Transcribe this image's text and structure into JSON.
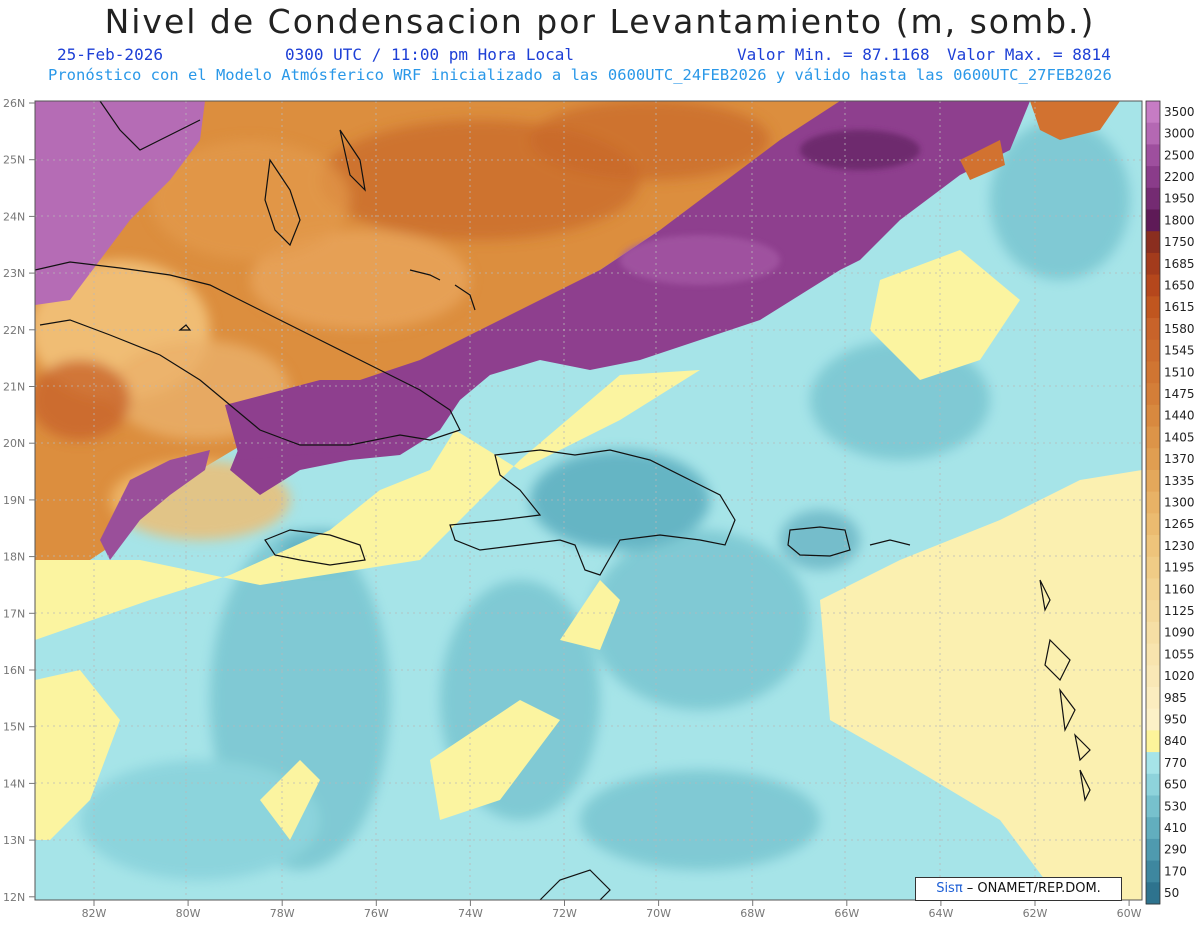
{
  "header": {
    "title": "Nivel de Condensacion por Levantamiento (m, somb.)",
    "date": "25-Feb-2026",
    "time": "0300 UTC / 11:00 pm Hora Local",
    "valmin": "Valor Min. = 87.1168",
    "valmax": "Valor Max. = 8814",
    "model_line": "Pronóstico con el Modelo Atmósferico WRF inicializado a las 0600UTC_24FEB2026 y válido hasta las  0600UTC_27FEB2026"
  },
  "axes": {
    "lat_labels": [
      "26N",
      "25N",
      "24N",
      "23N",
      "22N",
      "21N",
      "20N",
      "19N",
      "18N",
      "17N",
      "16N",
      "15N",
      "14N",
      "13N",
      "12N"
    ],
    "lon_labels": [
      "82W",
      "80W",
      "78W",
      "76W",
      "74W",
      "72W",
      "70W",
      "68W",
      "66W",
      "64W",
      "62W",
      "60W"
    ]
  },
  "colorbar": {
    "labels": [
      "3500",
      "3000",
      "2500",
      "2200",
      "1950",
      "1800",
      "1750",
      "1685",
      "1650",
      "1615",
      "1580",
      "1545",
      "1510",
      "1475",
      "1440",
      "1405",
      "1370",
      "1335",
      "1300",
      "1265",
      "1230",
      "1195",
      "1160",
      "1125",
      "1090",
      "1055",
      "1020",
      "985",
      "950",
      "840",
      "770",
      "650",
      "530",
      "410",
      "290",
      "170",
      "50"
    ],
    "colors": [
      "#c67cc4",
      "#b468b3",
      "#9e4f9e",
      "#8a3c8a",
      "#742b72",
      "#5e1a57",
      "#8a2e1f",
      "#a33b1c",
      "#b5471c",
      "#c0561f",
      "#c8632a",
      "#cc6c2e",
      "#d07532",
      "#d47e38",
      "#d8893f",
      "#dc9448",
      "#e09e51",
      "#e4a85b",
      "#e8b266",
      "#ebbb70",
      "#eec47b",
      "#f0cc86",
      "#f2d391",
      "#f4d99b",
      "#f6dfa5",
      "#f8e4ae",
      "#f9e8b6",
      "#fbedbf",
      "#fcf1c7",
      "#fdf49a",
      "#a6e4e8",
      "#8ed3db",
      "#77c1cd",
      "#62aebe",
      "#4f9aaf",
      "#3e879f",
      "#2e738e"
    ]
  },
  "legend_rgb": {
    "land_orange": "#d88a3c",
    "purple": "#9a4f9a",
    "yellow": "#fbf4a0",
    "cyan": "#a6e4e8",
    "teal": "#6fb9c8"
  },
  "credit": {
    "sis": "Sisπ",
    "rest": " – ONAMET/REP.DOM."
  }
}
